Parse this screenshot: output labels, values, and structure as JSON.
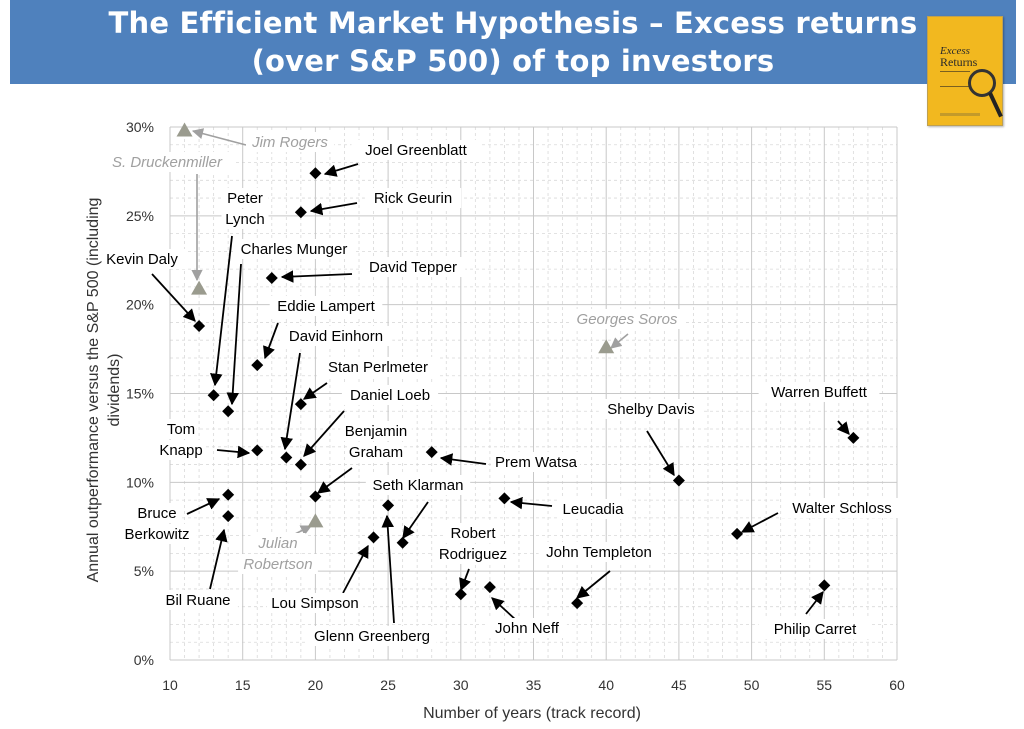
{
  "header": {
    "title_line1": "The Efficient Market Hypothesis – Excess returns",
    "title_line2": "(over S&P 500) of  top investors"
  },
  "book_cover": {
    "title_italic": "Excess",
    "title": "Returns",
    "color": "#f2b81f"
  },
  "chart_data": {
    "type": "scatter",
    "xlabel": "Number of years (track record)",
    "ylabel": "Annual outperformance versus the S&P 500 (including dividends)",
    "ylabel_line1": "Annual outperformance versus the S&P 500 (including",
    "ylabel_line2": "dividends)",
    "xlim": [
      10,
      60
    ],
    "ylim": [
      0,
      30
    ],
    "x_ticks": [
      "10",
      "15",
      "20",
      "25",
      "30",
      "35",
      "40",
      "45",
      "50",
      "55",
      "60"
    ],
    "y_ticks": [
      "0%",
      "5%",
      "10%",
      "15%",
      "20%",
      "25%",
      "30%"
    ],
    "grid": true,
    "colors": {
      "diamond": "#000000",
      "triangle": "#9a9b8e",
      "gray_label": "#a0a0a0",
      "gridline": "#c8c8c8"
    },
    "series": [
      {
        "marker": "diamond",
        "points": [
          {
            "label": "Joel Greenblatt",
            "x": 20,
            "y": 27.4
          },
          {
            "label": "Rick Geurin",
            "x": 19,
            "y": 25.2
          },
          {
            "label": "David Tepper",
            "x": 17,
            "y": 21.5
          },
          {
            "label": "Kevin Daly",
            "x": 12,
            "y": 18.8
          },
          {
            "label": "Eddie Lampert",
            "x": 16,
            "y": 16.6
          },
          {
            "label": "Peter Lynch",
            "x": 13,
            "y": 14.9
          },
          {
            "label": "Charles Munger",
            "x": 14,
            "y": 14.0
          },
          {
            "label": "Stan Perlmeter",
            "x": 19,
            "y": 14.4
          },
          {
            "label": "Tom Knapp",
            "x": 16,
            "y": 11.8
          },
          {
            "label": "David Einhorn",
            "x": 18,
            "y": 11.4
          },
          {
            "label": "Daniel Loeb",
            "x": 19,
            "y": 11.0
          },
          {
            "label": "Prem Watsa",
            "x": 28,
            "y": 11.7
          },
          {
            "label": "Benjamin Graham",
            "x": 20,
            "y": 9.2
          },
          {
            "label": "Bruce Berkowitz",
            "x": 14,
            "y": 9.3
          },
          {
            "label": "Bil Ruane",
            "x": 14,
            "y": 8.1
          },
          {
            "label": "Seth Klarman",
            "x": 26,
            "y": 6.6
          },
          {
            "label": "Glenn Greenberg",
            "x": 25,
            "y": 8.7
          },
          {
            "label": "Lou Simpson",
            "x": 24,
            "y": 6.9
          },
          {
            "label": "Leucadia",
            "x": 33,
            "y": 9.1
          },
          {
            "label": "Robert Rodriguez",
            "x": 30,
            "y": 3.7
          },
          {
            "label": "John Neff",
            "x": 32,
            "y": 4.1
          },
          {
            "label": "John Templeton",
            "x": 38,
            "y": 3.2
          },
          {
            "label": "Shelby Davis",
            "x": 45,
            "y": 10.1
          },
          {
            "label": "Warren Buffett",
            "x": 57,
            "y": 12.5
          },
          {
            "label": "Walter Schloss",
            "x": 49,
            "y": 7.1
          },
          {
            "label": "Philip Carret",
            "x": 55,
            "y": 4.2
          }
        ]
      },
      {
        "marker": "triangle",
        "points": [
          {
            "label": "Jim Rogers",
            "x": 11,
            "y": 29.8
          },
          {
            "label": "S. Druckenmiller",
            "x": 12,
            "y": 20.9
          },
          {
            "label": "Georges Soros",
            "x": 40,
            "y": 17.6
          },
          {
            "label": "Julian Robertson",
            "x": 20,
            "y": 7.8
          }
        ]
      }
    ]
  }
}
